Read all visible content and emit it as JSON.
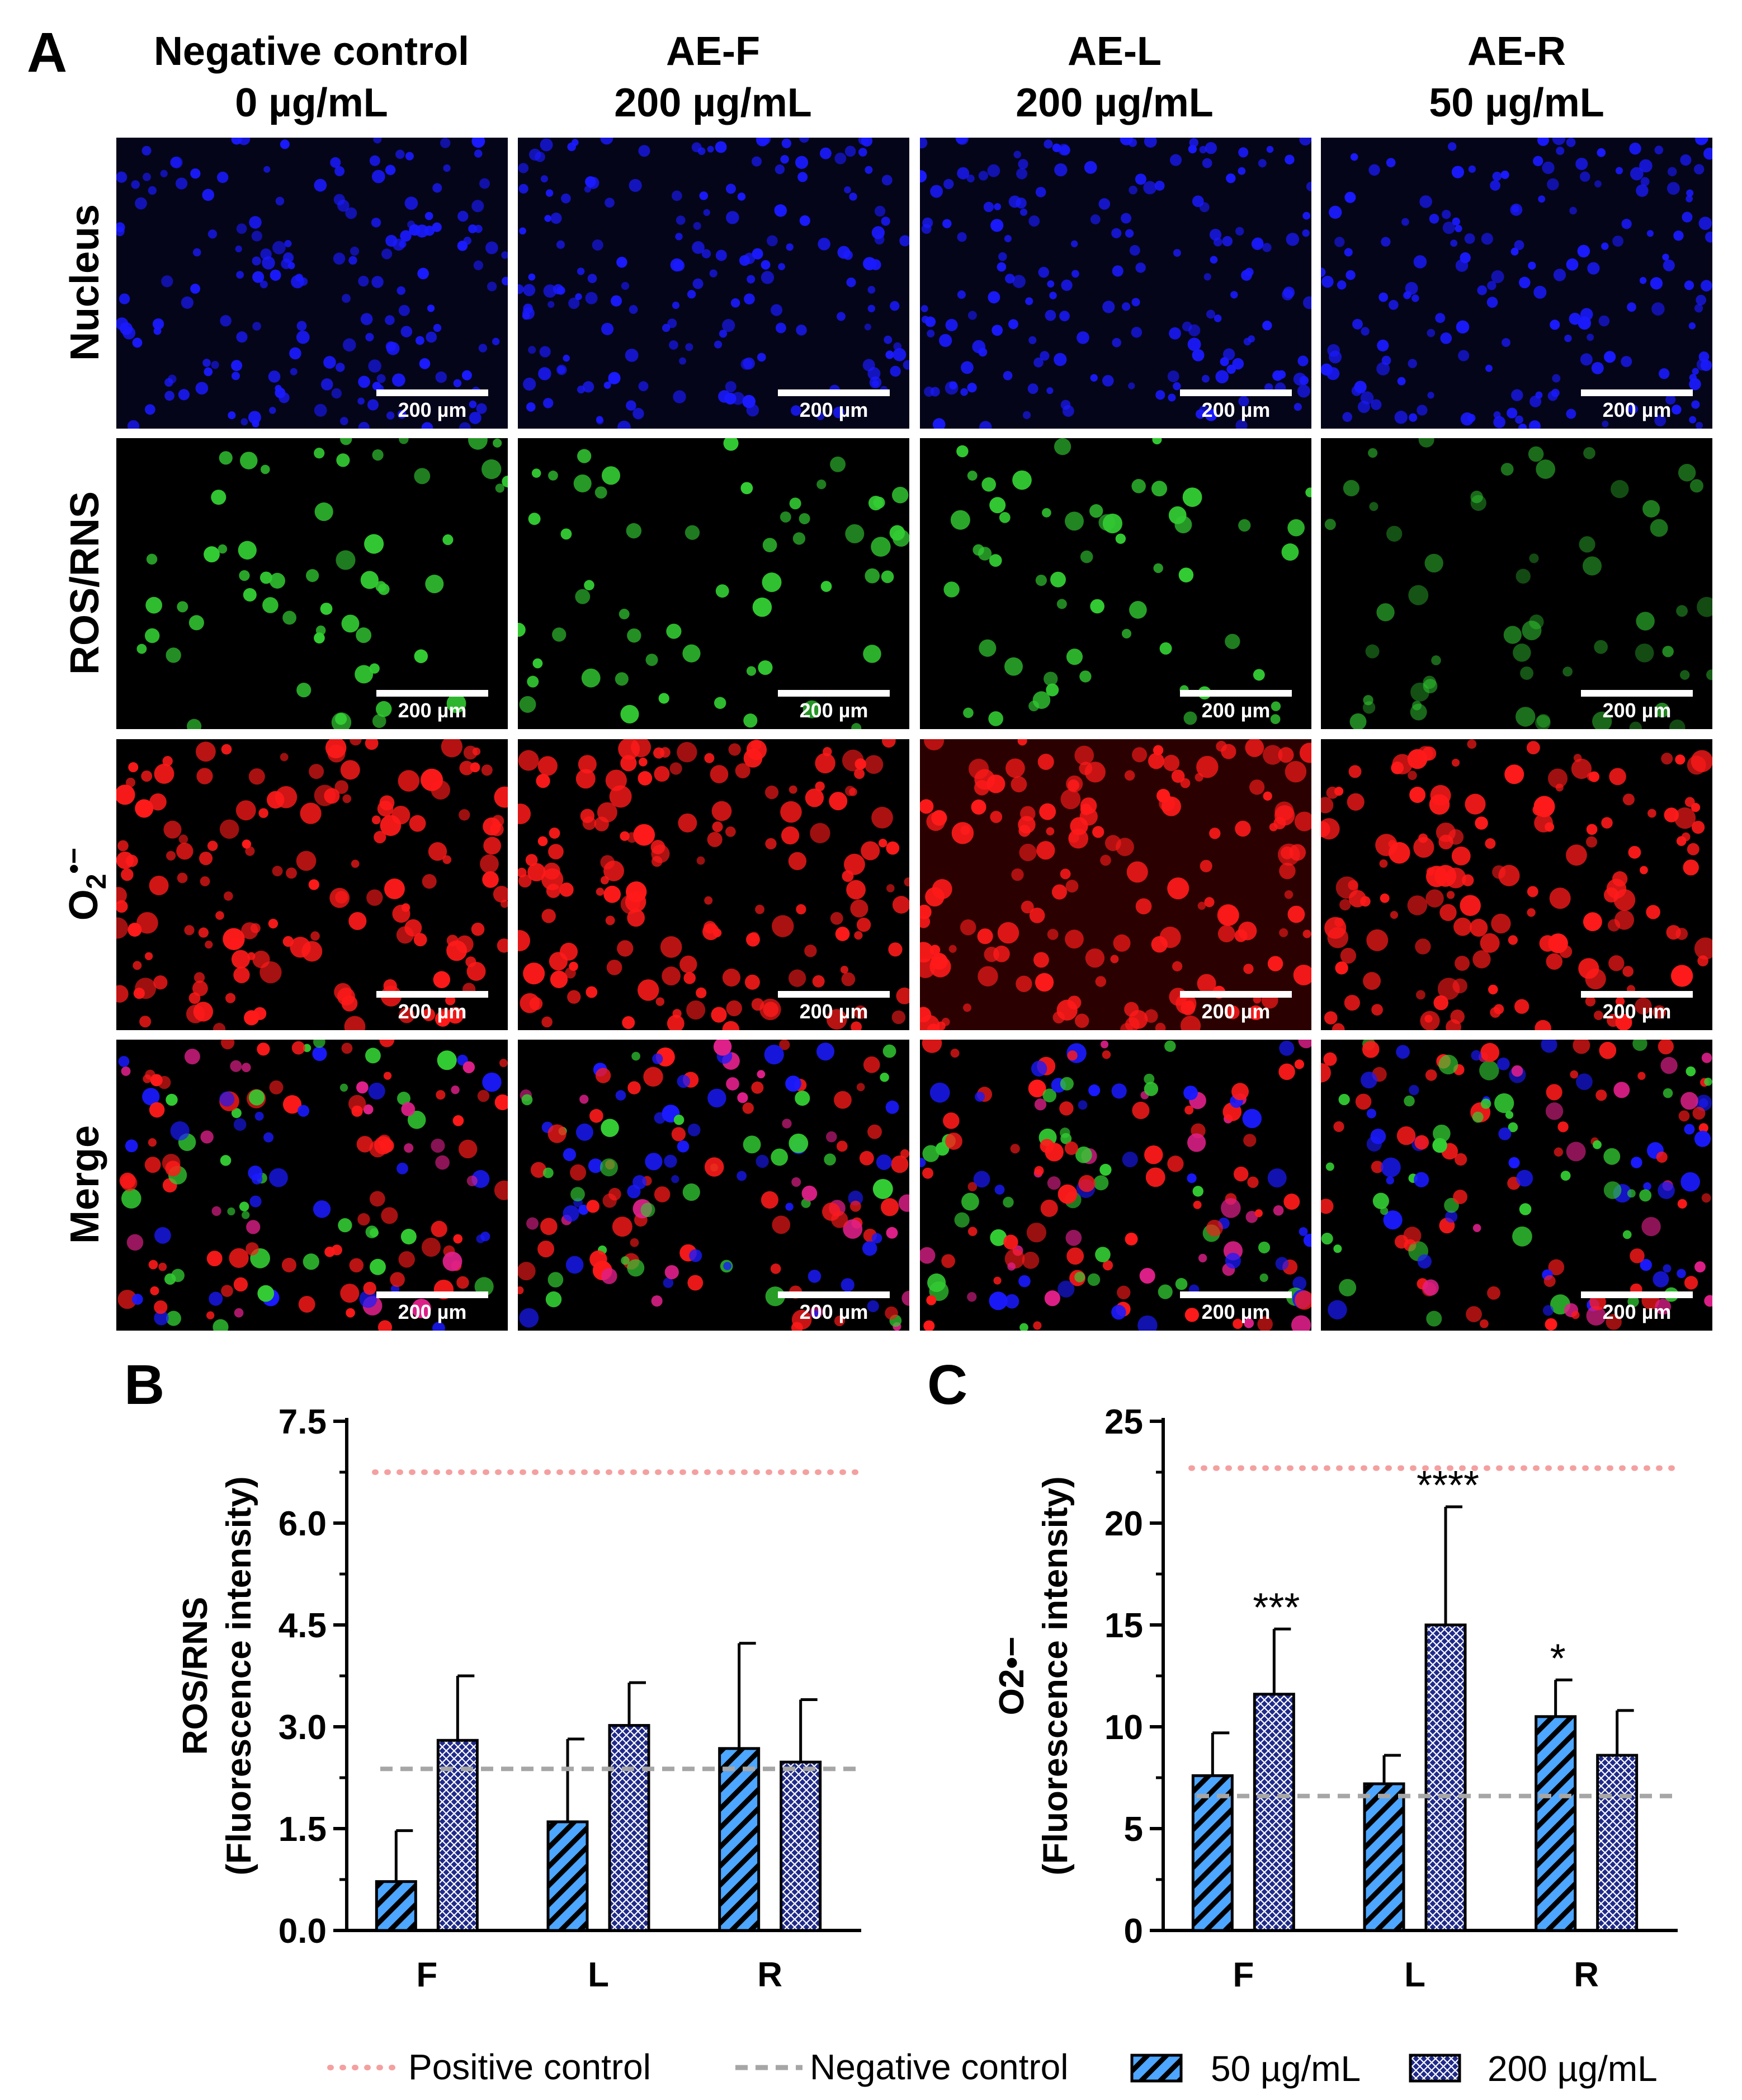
{
  "panel_a": {
    "letter": "A",
    "columns": [
      {
        "name": "Negative control",
        "dose": "0 µg/mL"
      },
      {
        "name": "AE-F",
        "dose": "200 µg/mL"
      },
      {
        "name": "AE-L",
        "dose": "200 µg/mL"
      },
      {
        "name": "AE-R",
        "dose": "50 µg/mL"
      }
    ],
    "rows": [
      {
        "label": "Nucleus",
        "channel": "blue"
      },
      {
        "label": "ROS/RNS",
        "channel": "green"
      },
      {
        "label": "O2•−",
        "channel": "red",
        "sub": "2",
        "sup": "•−",
        "base": "O"
      },
      {
        "label": "Merge",
        "channel": "merge"
      }
    ],
    "scale_bar": "200 µm",
    "channel_colors": {
      "blue": "#1a1aff",
      "green": "#33cc33",
      "red": "#ff1a1a",
      "magenta": "#e0208a"
    }
  },
  "chart_data": [
    {
      "panel": "B",
      "type": "bar",
      "categories": [
        "F",
        "L",
        "R"
      ],
      "ylabel_lines": [
        "ROS/RNS",
        "(Fluorescence intensity)"
      ],
      "ylim": [
        0,
        7.5
      ],
      "yticks": [
        "0.0",
        "1.5",
        "3.0",
        "4.5",
        "6.0",
        "7.5"
      ],
      "series": [
        {
          "name": "50 µg/mL",
          "values": [
            0.72,
            1.6,
            2.68
          ],
          "errors": [
            0.75,
            1.22,
            1.55
          ],
          "pattern": "diagonal"
        },
        {
          "name": "200 µg/mL",
          "values": [
            2.8,
            3.02,
            2.48
          ],
          "errors": [
            0.95,
            0.63,
            0.92
          ],
          "pattern": "crosshatch"
        }
      ],
      "positive_control": 6.75,
      "negative_control": 2.38,
      "significance": [
        "",
        "",
        "",
        "",
        "",
        ""
      ]
    },
    {
      "panel": "C",
      "type": "bar",
      "categories": [
        "F",
        "L",
        "R"
      ],
      "ylabel_lines": [
        "O2•−",
        "(Fluorescence intensity)"
      ],
      "ylim": [
        0,
        25
      ],
      "yticks": [
        "0",
        "5",
        "10",
        "15",
        "20",
        "25"
      ],
      "series": [
        {
          "name": "50 µg/mL",
          "values": [
            7.6,
            7.2,
            10.5
          ],
          "errors": [
            2.1,
            1.4,
            1.8
          ],
          "pattern": "diagonal"
        },
        {
          "name": "200 µg/mL",
          "values": [
            11.6,
            15.0,
            8.6
          ],
          "errors": [
            3.2,
            5.8,
            2.2
          ],
          "pattern": "crosshatch"
        }
      ],
      "positive_control": 22.7,
      "negative_control": 6.6,
      "significance": [
        "",
        "***",
        "",
        "****",
        "*",
        ""
      ]
    }
  ],
  "legend": {
    "positive_control": "Positive control",
    "negative_control": "Negative control",
    "series_50": "50 µg/mL",
    "series_200": "200 µg/mL",
    "positive_color": "#f4a0a0",
    "negative_color": "#a6a6a6",
    "bar_fill": "#4da6ff",
    "bar_fill_dark": "#1f2a8a"
  }
}
